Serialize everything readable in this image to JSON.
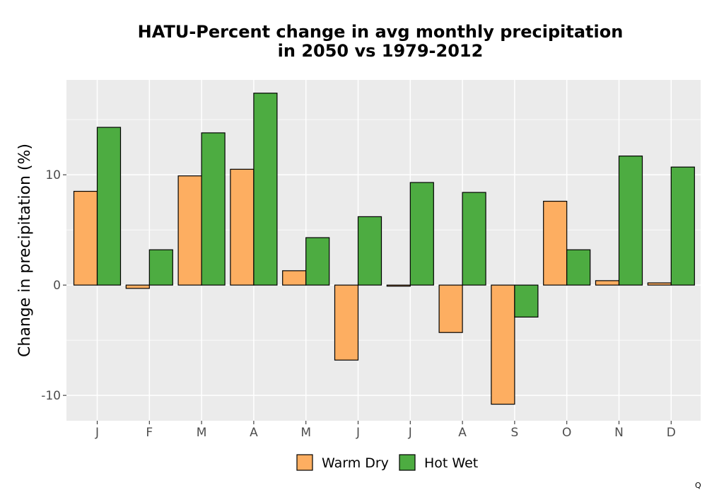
{
  "chart_data": {
    "type": "bar",
    "title_lines": [
      "HATU-Percent change in avg monthly precipitation",
      "in 2050 vs 1979-2012"
    ],
    "xlabel": "",
    "ylabel": "Change in precipitation (%)",
    "categories": [
      "J",
      "F",
      "M",
      "A",
      "M",
      "J",
      "J",
      "A",
      "S",
      "O",
      "N",
      "D"
    ],
    "series": [
      {
        "name": "Warm Dry",
        "color": "#fdae61",
        "values": [
          8.5,
          -0.3,
          9.9,
          10.5,
          1.3,
          -6.8,
          -0.1,
          -4.3,
          -10.8,
          7.6,
          0.4,
          0.2
        ]
      },
      {
        "name": "Hot Wet",
        "color": "#4dac41",
        "values": [
          14.3,
          3.2,
          13.8,
          17.4,
          4.3,
          6.2,
          9.3,
          8.4,
          -2.9,
          3.2,
          11.7,
          10.7
        ]
      }
    ],
    "ylim": [
      -12.3,
      18.6
    ],
    "yticks": [
      -10,
      0,
      10
    ],
    "ytick_labels": [
      "-10",
      "0",
      "10"
    ],
    "grid": true,
    "legend_position": "bottom"
  },
  "corner_mark": "Q"
}
